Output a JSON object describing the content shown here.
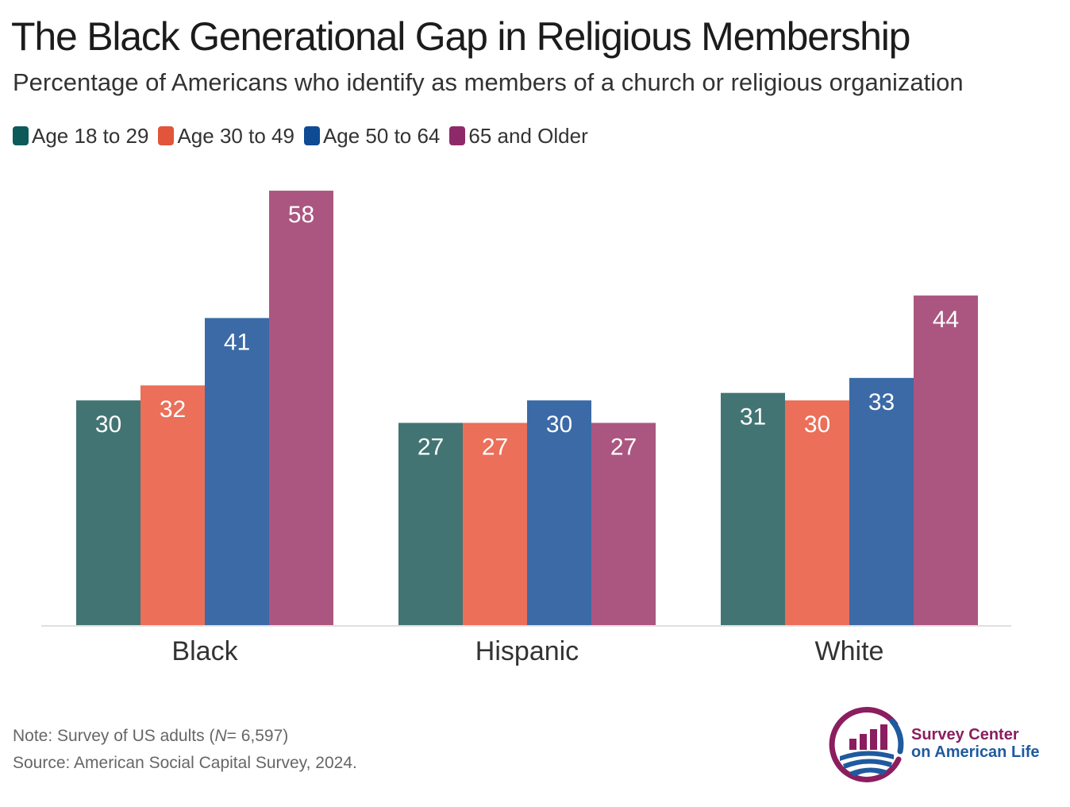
{
  "chart_data": {
    "type": "bar",
    "title": "The Black Generational Gap in Religious Membership",
    "subtitle": "Percentage of Americans who identify as members of a church or religious organization",
    "categories": [
      "Black",
      "Hispanic",
      "White"
    ],
    "series": [
      {
        "name": "Age 18 to 29",
        "color": "#437474",
        "values": [
          30,
          27,
          31
        ]
      },
      {
        "name": "Age 30 to 49",
        "color": "#eb6f59",
        "values": [
          32,
          27,
          30
        ]
      },
      {
        "name": "Age 50 to 64",
        "color": "#3b6aa6",
        "values": [
          41,
          30,
          33
        ]
      },
      {
        "name": "65 and Older",
        "color": "#ab5680",
        "values": [
          58,
          27,
          44
        ]
      }
    ],
    "ylim": [
      0,
      60
    ],
    "grid": false,
    "legend_position": "top-left",
    "xlabel": "",
    "ylabel": ""
  },
  "legend": {
    "swatch_colors": [
      "#0e5a5b",
      "#e2553a",
      "#0f4a94",
      "#8f2a6a"
    ]
  },
  "note": {
    "line1_prefix": "Note: Survey of US adults (",
    "line1_n": "N",
    "line1_suffix": "= 6,597)",
    "line2": "Source: American Social Capital Survey, 2024."
  },
  "logo": {
    "line1": "Survey Center",
    "line2": "on American Life",
    "icon": "survey-center-logo-icon",
    "colors": {
      "purple": "#8b1e5f",
      "blue": "#1f5a9e"
    }
  }
}
